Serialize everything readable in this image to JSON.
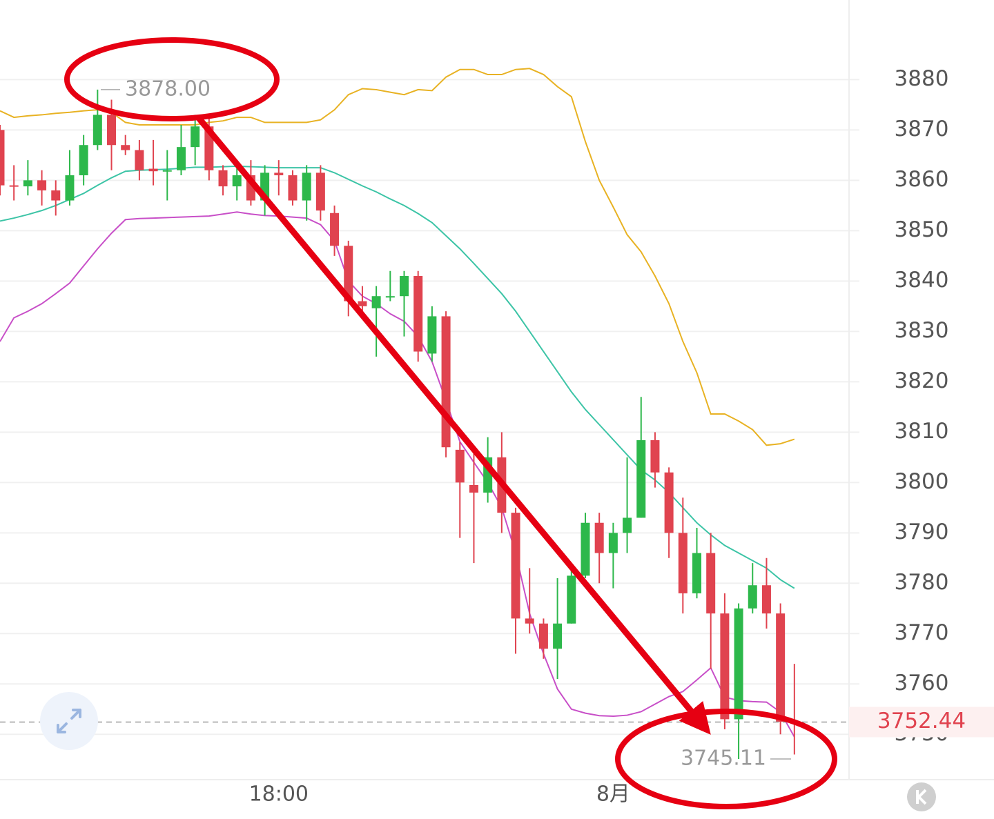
{
  "chart_data": {
    "type": "candlestick",
    "categories": [
      null,
      null,
      null,
      null,
      null,
      null,
      null,
      null,
      null,
      null,
      null,
      null,
      null,
      null,
      null,
      null,
      null,
      null,
      null,
      null,
      "18:00",
      null,
      null,
      null,
      null,
      null,
      null,
      null,
      null,
      null,
      null,
      null,
      null,
      null,
      null,
      null,
      null,
      null,
      null,
      null,
      null,
      null,
      null,
      null,
      "8月",
      null,
      null,
      null,
      null,
      null,
      null,
      null,
      null,
      null,
      null,
      null,
      null,
      null
    ],
    "open": [
      3870,
      3859,
      3858.8,
      3860,
      3858,
      3856,
      3861,
      3867,
      3873,
      3867,
      3866,
      3862.3,
      3862,
      3862,
      3866.6,
      3870.7,
      3862,
      3858.8,
      3861,
      3856,
      3861.5,
      3861,
      3856,
      3861.5,
      3853.5,
      3847,
      3836,
      3834.6,
      3837,
      3837,
      3841,
      3825.6,
      3833,
      3806.5,
      3799.5,
      3798,
      3805,
      3794,
      3773,
      3772,
      3767,
      3772,
      3781.5,
      3792,
      3786,
      3790,
      3793,
      3808.4,
      3802,
      3790,
      3778,
      3786,
      3774,
      3753,
      3775,
      3779.6,
      3774,
      3752.5
    ],
    "high": [
      3871,
      3863,
      3864,
      3862,
      3860,
      3866,
      3869,
      3878,
      3876,
      3869,
      3868,
      3868,
      3866,
      3871,
      3873,
      3873,
      3863,
      3864,
      3864,
      3863,
      3864,
      3862,
      3863,
      3863,
      3855,
      3848,
      3839,
      3839,
      3842,
      3842,
      3842,
      3835,
      3834,
      3808,
      3807,
      3809,
      3810,
      3795,
      3783,
      3773,
      3781,
      3784,
      3794,
      3794,
      3792,
      3805,
      3817,
      3810,
      3803,
      3797,
      3791,
      3790,
      3778,
      3776,
      3784,
      3785,
      3776,
      3764
    ],
    "low": [
      3857,
      3856,
      3857,
      3855,
      3853,
      3855,
      3859,
      3866,
      3862,
      3865,
      3860,
      3859,
      3856,
      3861,
      3863,
      3860,
      3857,
      3856,
      3855,
      3853,
      3857,
      3855,
      3852,
      3852,
      3845,
      3833,
      3834,
      3825,
      3836,
      3829,
      3824,
      3824,
      3805,
      3789,
      3784,
      3796,
      3790,
      3766,
      3770,
      3765,
      3761,
      3772,
      3781,
      3780,
      3779,
      3786,
      3793,
      3799,
      3785,
      3774,
      3777,
      3763,
      3751,
      3745.11,
      3774,
      3771,
      3750,
      3746
    ],
    "close": [
      3859,
      3858.8,
      3860,
      3858,
      3856,
      3861,
      3867,
      3873,
      3867,
      3866,
      3862,
      3861.8,
      3862,
      3866.6,
      3870.7,
      3862,
      3858.8,
      3861,
      3856,
      3861.5,
      3861,
      3856,
      3861.5,
      3854,
      3847,
      3836,
      3835,
      3837,
      3837,
      3841,
      3826,
      3833,
      3807,
      3800,
      3798,
      3805,
      3794,
      3773,
      3772,
      3767,
      3772,
      3781.5,
      3792,
      3786,
      3790,
      3793,
      3808.4,
      3802,
      3790,
      3778,
      3786,
      3774,
      3753,
      3775,
      3779.6,
      3774,
      3752.5,
      3752.44
    ],
    "up_color": "#2db84b",
    "down_color": "#e0434f",
    "lines": [
      {
        "color": "#e8b223",
        "values": [
          3873.8,
          3872.5,
          3872.8,
          3873,
          3873.3,
          3873.5,
          3873.8,
          3874,
          3873.5,
          3871.5,
          3871,
          3871,
          3871,
          3871,
          3871,
          3871.5,
          3871.8,
          3872.5,
          3872.5,
          3871.5,
          3871.5,
          3871.5,
          3871.5,
          3872,
          3874,
          3877,
          3878.2,
          3878,
          3877.5,
          3877,
          3878,
          3877.8,
          3880.5,
          3882,
          3882,
          3881,
          3881,
          3882,
          3882.2,
          3881,
          3878.6,
          3876.6,
          3867.7,
          3860,
          3854.7,
          3849.2,
          3845.8,
          3841,
          3835.5,
          3828,
          3821.8,
          3813.6,
          3813.6,
          3812.2,
          3810.5,
          3807.4,
          3807.7,
          3808.6
        ]
      },
      {
        "color": "#3cc4a6",
        "values": [
          3851.9,
          3852.5,
          3853.2,
          3854,
          3855,
          3856.2,
          3857.4,
          3859,
          3860.5,
          3861.8,
          3862,
          3862.1,
          3862.2,
          3862.4,
          3862.6,
          3862.6,
          3862.7,
          3862.8,
          3862.7,
          3862.6,
          3862.5,
          3862.5,
          3862.5,
          3862.5,
          3861.5,
          3860.2,
          3858.9,
          3857.7,
          3856.3,
          3855,
          3853.4,
          3851.6,
          3849,
          3846.4,
          3843.5,
          3840.5,
          3837.5,
          3834,
          3830,
          3826,
          3822,
          3818,
          3814.5,
          3811.5,
          3808.5,
          3805.5,
          3802.5,
          3800.5,
          3798,
          3795,
          3792,
          3789.6,
          3787.5,
          3786,
          3784.5,
          3783,
          3780.7,
          3779
        ]
      },
      {
        "color": "#c84fc8",
        "values": [
          3828,
          3832.7,
          3834,
          3835.5,
          3837.5,
          3839.6,
          3843,
          3846.4,
          3849.5,
          3852.2,
          3852.4,
          3852.5,
          3852.6,
          3852.7,
          3852.8,
          3852.9,
          3853.3,
          3853.7,
          3853.3,
          3853,
          3852.9,
          3852.7,
          3852.5,
          3851.2,
          3848,
          3840,
          3837,
          3835.5,
          3833.5,
          3832,
          3829,
          3824,
          3816.3,
          3808.1,
          3804,
          3800,
          3795,
          3786,
          3774,
          3766,
          3759,
          3755,
          3754.2,
          3753.7,
          3753.6,
          3753.8,
          3754.5,
          3756,
          3757.5,
          3758.5,
          3760.8,
          3763.2,
          3757.4,
          3756.7,
          3756.5,
          3756.4,
          3754.4,
          3749.5
        ]
      }
    ],
    "ylim": [
      3741,
      3895.8
    ],
    "yticks": [
      3880,
      3870,
      3860,
      3850,
      3840,
      3830,
      3820,
      3810,
      3800,
      3790,
      3780,
      3770,
      3760,
      3750
    ],
    "grid": true,
    "high_marker": {
      "value": 3878,
      "label": "3878.00"
    },
    "low_marker": {
      "value": 3745.11,
      "label": "3745.11"
    },
    "last_price": {
      "value": 3752.44,
      "label": "3752.44"
    }
  }
}
